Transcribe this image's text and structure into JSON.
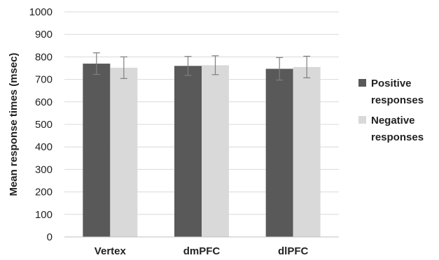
{
  "chart_data": {
    "type": "bar",
    "title": "",
    "xlabel": "",
    "ylabel": "Mean response times (msec)",
    "ylim": [
      0,
      1000
    ],
    "yticks": [
      "0",
      "100",
      "200",
      "300",
      "400",
      "500",
      "600",
      "700",
      "800",
      "900",
      "1000"
    ],
    "categories": [
      "Vertex",
      "dmPFC",
      "dlPFC"
    ],
    "grid": true,
    "legend_position": "right",
    "series": [
      {
        "name": "Positive responses",
        "legend_lines": [
          "Positive",
          "responses"
        ],
        "color": "#595959",
        "values": [
          770,
          760,
          747
        ],
        "error": [
          48,
          42,
          50
        ]
      },
      {
        "name": "Negative responses",
        "legend_lines": [
          "Negative",
          "responses"
        ],
        "color": "#d9d9d9",
        "values": [
          752,
          763,
          755
        ],
        "error": [
          48,
          42,
          48
        ]
      }
    ]
  }
}
